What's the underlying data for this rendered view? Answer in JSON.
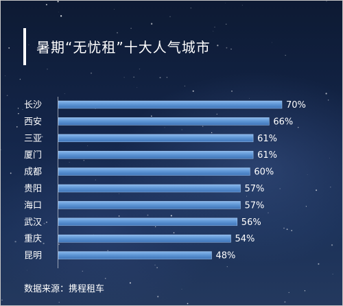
{
  "title": "暑期“无忧租”十大人气城市",
  "source": "数据来源：携程租车",
  "chart_data": {
    "type": "bar",
    "orientation": "horizontal",
    "title": "暑期“无忧租”十大人气城市",
    "categories": [
      "长沙",
      "西安",
      "三亚",
      "厦门",
      "成都",
      "贵阳",
      "海口",
      "武汉",
      "重庆",
      "昆明"
    ],
    "values": [
      70,
      66,
      61,
      61,
      60,
      57,
      57,
      56,
      54,
      48
    ],
    "value_labels": [
      "70%",
      "66%",
      "61%",
      "61%",
      "60%",
      "57%",
      "57%",
      "56%",
      "54%",
      "48%"
    ],
    "xlim": [
      0,
      70
    ],
    "grid": false,
    "legend": "none",
    "bar_color": "#5b93d3"
  }
}
